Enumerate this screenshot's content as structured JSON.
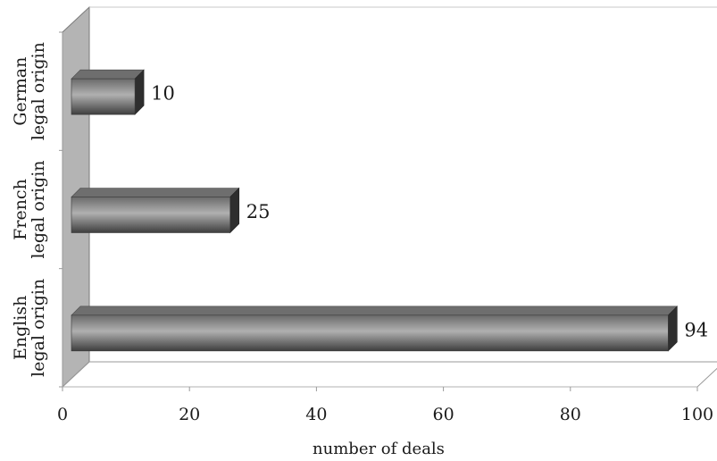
{
  "chart_data": {
    "type": "bar",
    "orientation": "horizontal",
    "three_d": true,
    "categories": [
      [
        "English",
        "legal origin"
      ],
      [
        "French",
        "legal origin"
      ],
      [
        "German",
        "legal origin"
      ]
    ],
    "values": [
      94,
      25,
      10
    ],
    "data_labels": [
      "94",
      "25",
      "10"
    ],
    "xlim": [
      0,
      100
    ],
    "x_ticks": [
      "0",
      "20",
      "40",
      "60",
      "80",
      "100"
    ],
    "xlabel": "number of deals",
    "ylabel": "",
    "title": "",
    "grid": false,
    "legend": "none",
    "colors": {
      "bar_front_light": "#9a9a9a",
      "bar_front_dark": "#3c3c3c",
      "bar_top": "#6e6e6e",
      "bar_side": "#2e2e2e",
      "wall": "#b4b4b4",
      "wall_edge": "#7a7a7a",
      "floor_line": "#9a9a9a"
    }
  }
}
